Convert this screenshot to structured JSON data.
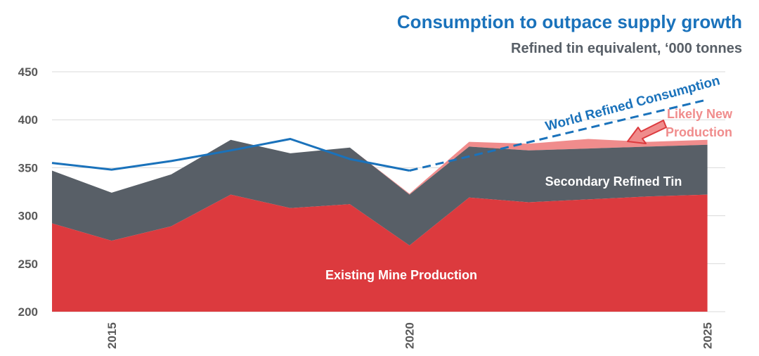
{
  "title": "Consumption to outpace supply growth",
  "subtitle": "Refined tin equivalent, ‘000 tonnes",
  "colors": {
    "title": "#1a72bb",
    "subtitle": "#585f67",
    "mine": "#dc3a3e",
    "secondary": "#585f67",
    "new_production": "#f08c8c",
    "consumption": "#1a72bb",
    "grid": "#d9d9d9",
    "axis_text": "#595959"
  },
  "chart_data": {
    "type": "area",
    "title": "Consumption to outpace supply growth",
    "subtitle": "Refined tin equivalent, ‘000 tonnes",
    "xlabel": "",
    "ylabel": "",
    "x": [
      2014,
      2015,
      2016,
      2017,
      2018,
      2019,
      2020,
      2021,
      2022,
      2023,
      2024,
      2025
    ],
    "xlim": [
      2014,
      2025.3
    ],
    "ylim": [
      200,
      450
    ],
    "y_ticks": [
      "200",
      "250",
      "300",
      "350",
      "400",
      "450"
    ],
    "x_ticks": [
      {
        "value": 2015,
        "label": "2015"
      },
      {
        "value": 2020,
        "label": "2020"
      },
      {
        "value": 2025,
        "label": "2025"
      }
    ],
    "grid": true,
    "series": [
      {
        "name": "Existing Mine Production",
        "kind": "stacked-area",
        "values": [
          292,
          274,
          289,
          322,
          308,
          312,
          269,
          319,
          314,
          317,
          320,
          322
        ]
      },
      {
        "name": "Secondary Refined Tin",
        "kind": "stacked-area-top",
        "values": [
          347,
          324,
          343,
          379,
          365,
          371,
          322,
          372,
          368,
          370,
          372,
          374
        ]
      },
      {
        "name": "Likely New Production",
        "kind": "stacked-area-top",
        "values": [
          347,
          324,
          343,
          379,
          365,
          371,
          323,
          377,
          375,
          380,
          377,
          379
        ]
      },
      {
        "name": "World Refined Consumption",
        "kind": "line",
        "x": [
          2014,
          2015,
          2016,
          2017,
          2018,
          2019,
          2020
        ],
        "values": [
          355,
          348,
          357,
          368,
          380,
          359,
          347
        ],
        "forecast_x": [
          2020,
          2025
        ],
        "forecast_values": [
          347,
          421
        ]
      }
    ],
    "labels": {
      "mine": "Existing Mine Production",
      "secondary": "Secondary Refined Tin",
      "consumption": "World Refined Consumption",
      "new_production_line1": "Likely New",
      "new_production_line2": "Production"
    }
  }
}
